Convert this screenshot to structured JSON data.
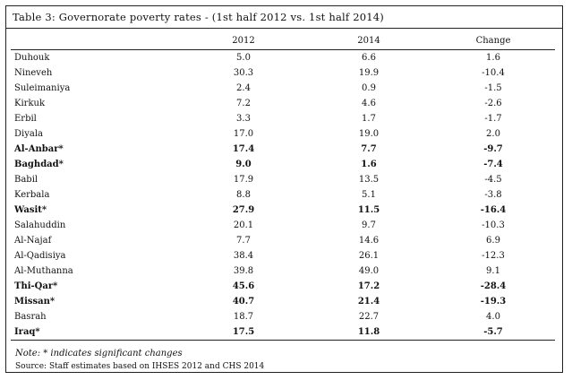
{
  "title": "Table 3: Governorate poverty rates  - (1st half 2012 vs. 1st half 2014)",
  "columns": [
    "",
    "2012",
    "2014",
    "Change"
  ],
  "rows": [
    {
      "name": "Duhouk",
      "v2012": "5.0",
      "v2014": "6.6",
      "change": "1.6",
      "bold": false
    },
    {
      "name": "Nineveh",
      "v2012": "30.3",
      "v2014": "19.9",
      "change": "-10.4",
      "bold": false
    },
    {
      "name": "Suleimaniya",
      "v2012": "2.4",
      "v2014": "0.9",
      "change": "-1.5",
      "bold": false
    },
    {
      "name": "Kirkuk",
      "v2012": "7.2",
      "v2014": "4.6",
      "change": "-2.6",
      "bold": false
    },
    {
      "name": "Erbil",
      "v2012": "3.3",
      "v2014": "1.7",
      "change": "-1.7",
      "bold": false
    },
    {
      "name": "Diyala",
      "v2012": "17.0",
      "v2014": "19.0",
      "change": "2.0",
      "bold": false
    },
    {
      "name": "Al-Anbar*",
      "v2012": "17.4",
      "v2014": "7.7",
      "change": "-9.7",
      "bold": true
    },
    {
      "name": "Baghdad*",
      "v2012": "9.0",
      "v2014": "1.6",
      "change": "-7.4",
      "bold": true
    },
    {
      "name": "Babil",
      "v2012": "17.9",
      "v2014": "13.5",
      "change": "-4.5",
      "bold": false
    },
    {
      "name": "Kerbala",
      "v2012": "8.8",
      "v2014": "5.1",
      "change": "-3.8",
      "bold": false
    },
    {
      "name": "Wasit*",
      "v2012": "27.9",
      "v2014": "11.5",
      "change": "-16.4",
      "bold": true
    },
    {
      "name": "Salahuddin",
      "v2012": "20.1",
      "v2014": "9.7",
      "change": "-10.3",
      "bold": false
    },
    {
      "name": "Al-Najaf",
      "v2012": "7.7",
      "v2014": "14.6",
      "change": "6.9",
      "bold": false
    },
    {
      "name": "Al-Qadisiya",
      "v2012": "38.4",
      "v2014": "26.1",
      "change": "-12.3",
      "bold": false
    },
    {
      "name": "Al-Muthanna",
      "v2012": "39.8",
      "v2014": "49.0",
      "change": "9.1",
      "bold": false
    },
    {
      "name": "Thi-Qar*",
      "v2012": "45.6",
      "v2014": "17.2",
      "change": "-28.4",
      "bold": true
    },
    {
      "name": "Missan*",
      "v2012": "40.7",
      "v2014": "21.4",
      "change": "-19.3",
      "bold": true
    },
    {
      "name": "Basrah",
      "v2012": "18.7",
      "v2014": "22.7",
      "change": "4.0",
      "bold": false
    },
    {
      "name": "Iraq*",
      "v2012": "17.5",
      "v2014": "11.8",
      "change": "-5.7",
      "bold": true
    }
  ],
  "note": "Note: * indicates significant changes",
  "source": "Source: Staff estimates based on IHSES 2012 and CHS 2014"
}
